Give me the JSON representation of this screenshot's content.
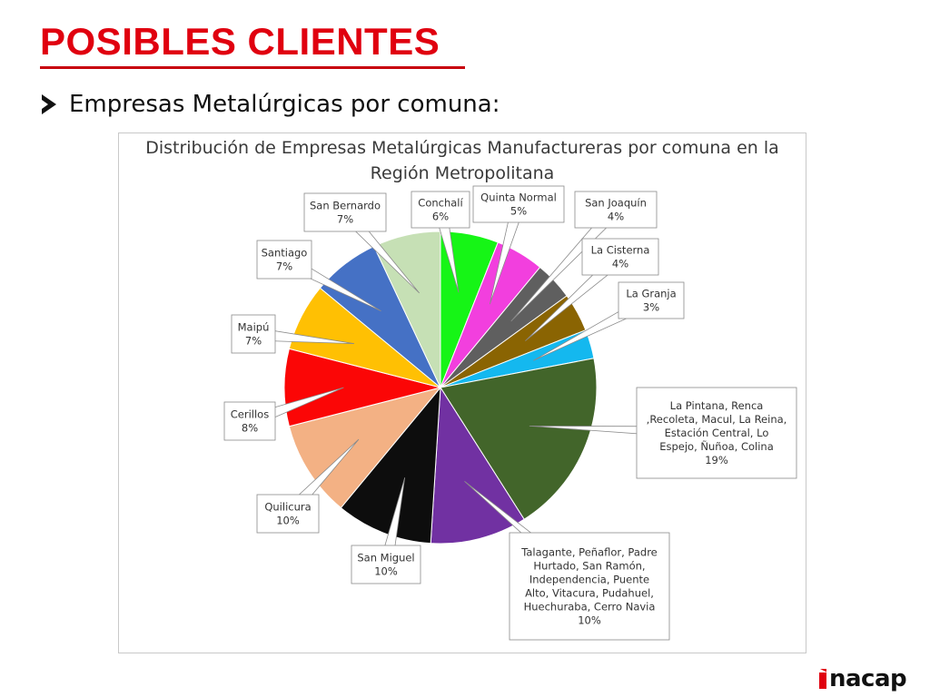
{
  "slide": {
    "title": "POSIBLES CLIENTES",
    "bullet": "Empresas Metalúrgicas por comuna:",
    "logo_text": "nacap"
  },
  "chart_data": {
    "type": "pie",
    "title": "Distribución de Empresas Metalúrgicas Manufactureras por comuna en la Región Metropolitana",
    "title_lines": [
      "Distribución de Empresas Metalúrgicas Manufactureras por comuna en la",
      "Región Metropolitana"
    ],
    "start_angle_deg": 0,
    "direction": "clockwise",
    "slices": [
      {
        "label": "Conchalí",
        "value": 6,
        "display": "6%",
        "color": "#16f516"
      },
      {
        "label": "Quinta Normal",
        "value": 5,
        "display": "5%",
        "color": "#f23fde"
      },
      {
        "label": "San Joaquín",
        "value": 4,
        "display": "4%",
        "color": "#5f5f5f"
      },
      {
        "label": "La Cisterna",
        "value": 4,
        "display": "4%",
        "color": "#8a6402"
      },
      {
        "label": "La Granja",
        "value": 3,
        "display": "3%",
        "color": "#14b8ef"
      },
      {
        "label": "La Pintana, Renca ,Recoleta, Macul, La Reina, Estación Central, Lo Espejo, Ñuñoa, Colina",
        "label_lines": [
          "La Pintana, Renca",
          ",Recoleta, Macul, La Reina,",
          "Estación Central, Lo",
          "Espejo, Ñuñoa, Colina"
        ],
        "value": 19,
        "display": "19%",
        "color": "#42652a"
      },
      {
        "label": "Talagante, Peñaflor, Padre Hurtado, San Ramón, Independencia, Puente Alto, Vitacura, Pudahuel, Huechuraba, Cerro Navia",
        "label_lines": [
          "Talagante, Peñaflor, Padre",
          "Hurtado, San Ramón,",
          "Independencia, Puente",
          "Alto, Vitacura, Pudahuel,",
          "Huechuraba, Cerro Navia"
        ],
        "value": 10,
        "display": "10%",
        "color": "#7131a2"
      },
      {
        "label": "San Miguel",
        "value": 10,
        "display": "10%",
        "color": "#0d0d0d"
      },
      {
        "label": "Quilicura",
        "value": 10,
        "display": "10%",
        "color": "#f3b184"
      },
      {
        "label": "Cerillos",
        "value": 8,
        "display": "8%",
        "color": "#fb0606"
      },
      {
        "label": "Maipú",
        "value": 7,
        "display": "7%",
        "color": "#ffc003"
      },
      {
        "label": "Santiago",
        "value": 7,
        "display": "7%",
        "color": "#4571c5"
      },
      {
        "label": "San Bernardo",
        "value": 7,
        "display": "7%",
        "color": "#c6e0b5"
      }
    ]
  }
}
